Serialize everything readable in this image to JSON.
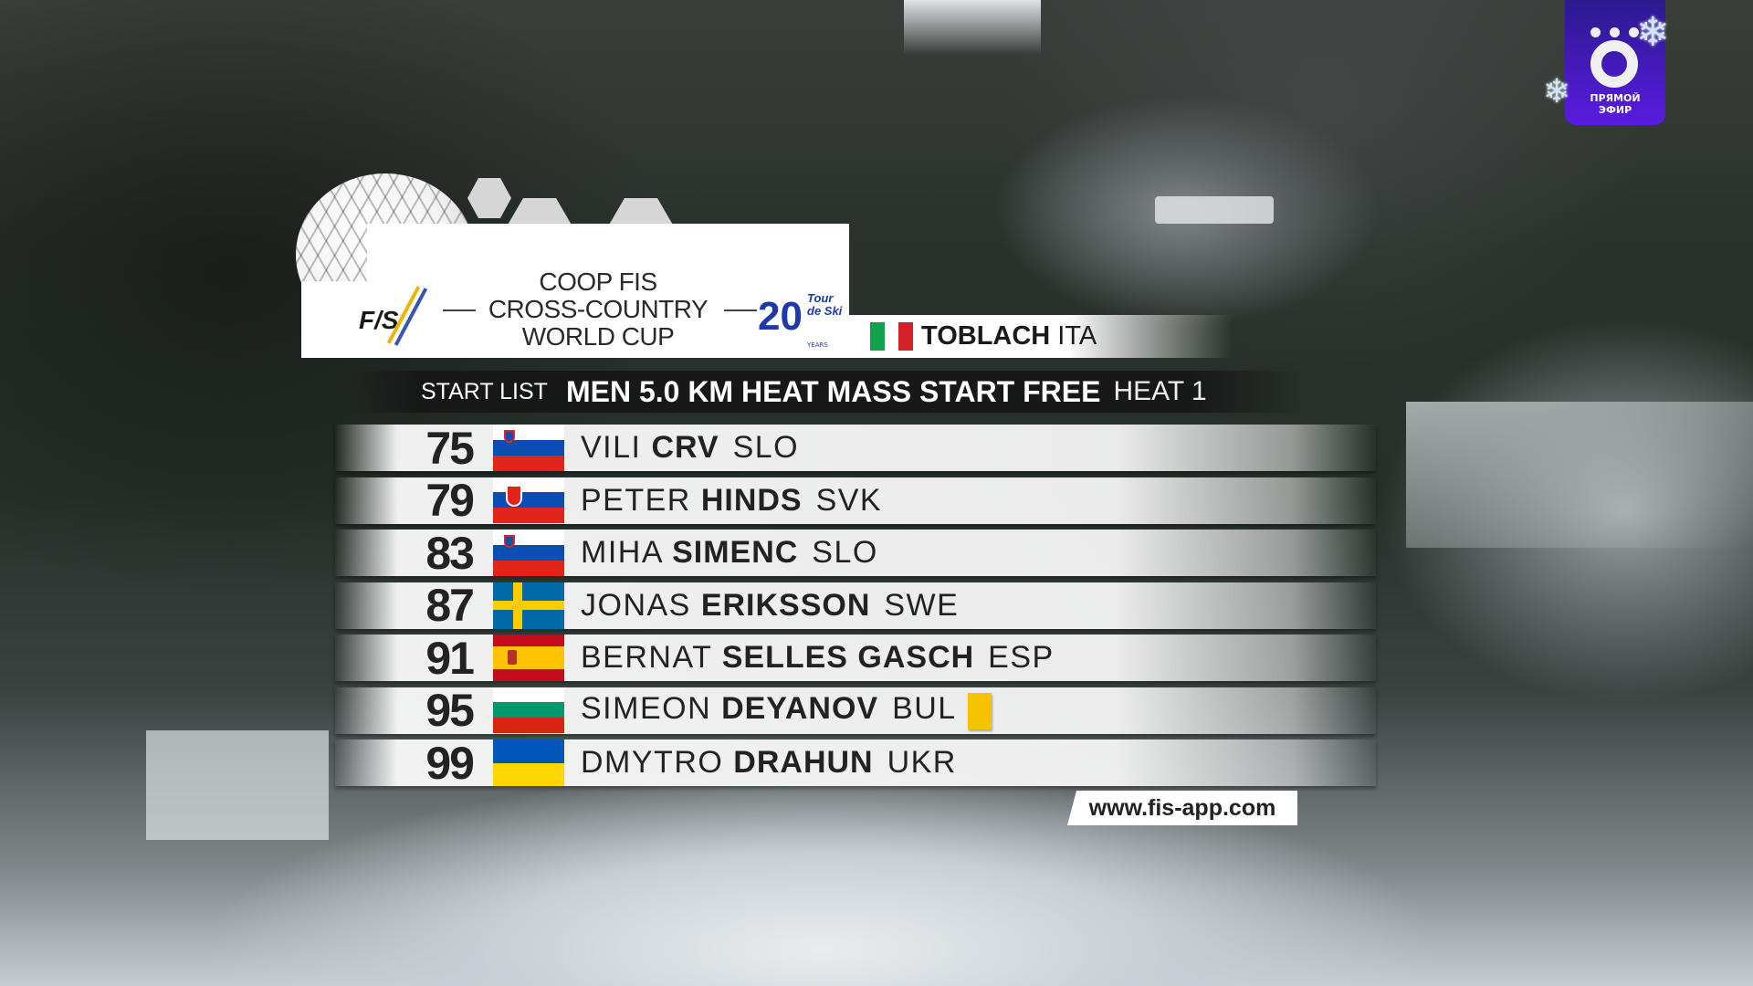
{
  "header": {
    "series_lines": [
      "COOP FIS",
      "CROSS-COUNTRY",
      "WORLD CUP"
    ],
    "fis_logo_text": "F/S",
    "tour_de_ski_logo": {
      "number": "20",
      "text": "Tour de Ski",
      "sub": "YEARS"
    },
    "venue": {
      "city": "TOBLACH",
      "nation": "ITA",
      "flag": "italy"
    }
  },
  "title_bar": {
    "label": "START LIST",
    "race": "MEN 5.0 KM HEAT MASS START FREE",
    "heat": "HEAT 1"
  },
  "start_list": [
    {
      "bib": "75",
      "first": "VILI",
      "last": "CRV",
      "nation": "SLO",
      "flag": "slovenia"
    },
    {
      "bib": "79",
      "first": "PETER",
      "last": "HINDS",
      "nation": "SVK",
      "flag": "slovakia"
    },
    {
      "bib": "83",
      "first": "MIHA",
      "last": "SIMENC",
      "nation": "SLO",
      "flag": "slovenia"
    },
    {
      "bib": "87",
      "first": "JONAS",
      "last": "ERIKSSON",
      "nation": "SWE",
      "flag": "sweden"
    },
    {
      "bib": "91",
      "first": "BERNAT",
      "last": "SELLES GASCH",
      "nation": "ESP",
      "flag": "spain"
    },
    {
      "bib": "95",
      "first": "SIMEON",
      "last": "DEYANOV",
      "nation": "BUL",
      "flag": "bulgaria",
      "yellow_bib": true
    },
    {
      "bib": "99",
      "first": "DMYTRO",
      "last": "DRAHUN",
      "nation": "UKR",
      "flag": "ukraine"
    }
  ],
  "footer": {
    "url": "www.fis-app.com"
  },
  "live_badge": {
    "logo": "Ö",
    "text_line1": "ПРЯМОЙ",
    "text_line2": "ЭФИР",
    "color": "#4a1bd0"
  },
  "colors": {
    "yellow_bib": "#f5c400",
    "tds_blue": "#1c3aa9"
  }
}
